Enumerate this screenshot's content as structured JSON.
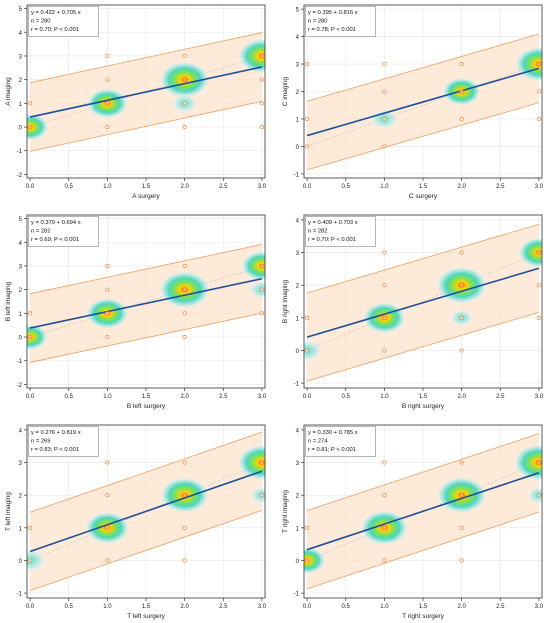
{
  "figure": {
    "panels": [
      {
        "id": "A",
        "chart_data": {
          "type": "scatter",
          "xlabel": "A surgery",
          "ylabel": "A imaging",
          "xlim": [
            0,
            3
          ],
          "ylim": [
            -2,
            5
          ],
          "xticks": [
            "0.0",
            "0.5",
            "1.0",
            "1.5",
            "2.0",
            "2.5",
            "3.0"
          ],
          "yticks": [
            "-2",
            "-1",
            "0",
            "1",
            "2",
            "3",
            "4",
            "5"
          ],
          "annotation": [
            "y = 0.422 + 0.705 x",
            "n = 280",
            "r = 0.70; P < 0.001"
          ],
          "regression": {
            "intercept": 0.422,
            "slope": 0.705
          },
          "band_halfwidth": 1.45,
          "points": [
            {
              "x": 0,
              "y": 0
            },
            {
              "x": 0,
              "y": 1
            },
            {
              "x": 1,
              "y": 0
            },
            {
              "x": 1,
              "y": 1
            },
            {
              "x": 1,
              "y": 2
            },
            {
              "x": 1,
              "y": 3
            },
            {
              "x": 2,
              "y": 0
            },
            {
              "x": 2,
              "y": 1
            },
            {
              "x": 2,
              "y": 2
            },
            {
              "x": 2,
              "y": 3
            },
            {
              "x": 3,
              "y": 0
            },
            {
              "x": 3,
              "y": 1
            },
            {
              "x": 3,
              "y": 2
            },
            {
              "x": 3,
              "y": 3
            }
          ],
          "density": [
            {
              "x": 0,
              "y": 0,
              "w": 0.45
            },
            {
              "x": 1,
              "y": 1,
              "w": 0.6
            },
            {
              "x": 2,
              "y": 2,
              "w": 0.95
            },
            {
              "x": 3,
              "y": 3,
              "w": 0.85
            },
            {
              "x": 2,
              "y": 1,
              "w": 0.2
            }
          ]
        }
      },
      {
        "id": "C",
        "chart_data": {
          "type": "scatter",
          "xlabel": "C surgery",
          "ylabel": "C imaging",
          "xlim": [
            0,
            3
          ],
          "ylim": [
            -1,
            5
          ],
          "xticks": [
            "0.0",
            "0.5",
            "1.0",
            "1.5",
            "2.0",
            "2.5",
            "3.0"
          ],
          "yticks": [
            "-1",
            "0",
            "1",
            "2",
            "3",
            "4",
            "5"
          ],
          "annotation": [
            "y = 0.395 + 0.816 x",
            "n = 280",
            "r = 0.78; P < 0.001"
          ],
          "regression": {
            "intercept": 0.395,
            "slope": 0.816
          },
          "band_halfwidth": 1.25,
          "points": [
            {
              "x": 0,
              "y": 0
            },
            {
              "x": 0,
              "y": 1
            },
            {
              "x": 0,
              "y": 3
            },
            {
              "x": 1,
              "y": 0
            },
            {
              "x": 1,
              "y": 1
            },
            {
              "x": 1,
              "y": 2
            },
            {
              "x": 1,
              "y": 3
            },
            {
              "x": 2,
              "y": 1
            },
            {
              "x": 2,
              "y": 2
            },
            {
              "x": 2,
              "y": 3
            },
            {
              "x": 3,
              "y": 1
            },
            {
              "x": 3,
              "y": 2
            },
            {
              "x": 3,
              "y": 3
            }
          ],
          "density": [
            {
              "x": 1,
              "y": 1,
              "w": 0.25
            },
            {
              "x": 2,
              "y": 2,
              "w": 0.5
            },
            {
              "x": 3,
              "y": 3,
              "w": 0.85
            }
          ]
        }
      },
      {
        "id": "B-left",
        "chart_data": {
          "type": "scatter",
          "xlabel": "B left surgery",
          "ylabel": "B left imaging",
          "xlim": [
            0,
            3
          ],
          "ylim": [
            -2,
            5
          ],
          "xticks": [
            "0.0",
            "0.5",
            "1.0",
            "1.5",
            "2.0",
            "2.5",
            "3.0"
          ],
          "yticks": [
            "-2",
            "-1",
            "0",
            "1",
            "2",
            "3",
            "4",
            "5"
          ],
          "annotation": [
            "y = 0.379 + 0.694 x",
            "n = 282",
            "r = 0.69; P < 0.001"
          ],
          "regression": {
            "intercept": 0.379,
            "slope": 0.694
          },
          "band_halfwidth": 1.45,
          "points": [
            {
              "x": 0,
              "y": 0
            },
            {
              "x": 0,
              "y": 1
            },
            {
              "x": 1,
              "y": 0
            },
            {
              "x": 1,
              "y": 1
            },
            {
              "x": 1,
              "y": 2
            },
            {
              "x": 1,
              "y": 3
            },
            {
              "x": 2,
              "y": 0
            },
            {
              "x": 2,
              "y": 1
            },
            {
              "x": 2,
              "y": 2
            },
            {
              "x": 2,
              "y": 3
            },
            {
              "x": 3,
              "y": 1
            },
            {
              "x": 3,
              "y": 2
            },
            {
              "x": 3,
              "y": 3
            }
          ],
          "density": [
            {
              "x": 0,
              "y": 0,
              "w": 0.4
            },
            {
              "x": 1,
              "y": 1,
              "w": 0.65
            },
            {
              "x": 2,
              "y": 2,
              "w": 1.0
            },
            {
              "x": 3,
              "y": 3,
              "w": 0.6
            },
            {
              "x": 3,
              "y": 2,
              "w": 0.2
            }
          ]
        }
      },
      {
        "id": "B-right",
        "chart_data": {
          "type": "scatter",
          "xlabel": "B right surgery",
          "ylabel": "B right imaging",
          "xlim": [
            0,
            3
          ],
          "ylim": [
            -1,
            4
          ],
          "xticks": [
            "0.0",
            "0.5",
            "1.0",
            "1.5",
            "2.0",
            "2.5",
            "3.0"
          ],
          "yticks": [
            "-1",
            "0",
            "1",
            "2",
            "3",
            "4"
          ],
          "annotation": [
            "y = 0.409 + 0.703 x",
            "n = 282",
            "r = 0.70; P < 0.001"
          ],
          "regression": {
            "intercept": 0.409,
            "slope": 0.703
          },
          "band_halfwidth": 1.35,
          "points": [
            {
              "x": 0,
              "y": 0
            },
            {
              "x": 0,
              "y": 1
            },
            {
              "x": 1,
              "y": 0
            },
            {
              "x": 1,
              "y": 1
            },
            {
              "x": 1,
              "y": 2
            },
            {
              "x": 1,
              "y": 3
            },
            {
              "x": 2,
              "y": 0
            },
            {
              "x": 2,
              "y": 1
            },
            {
              "x": 2,
              "y": 2
            },
            {
              "x": 2,
              "y": 3
            },
            {
              "x": 3,
              "y": 1
            },
            {
              "x": 3,
              "y": 2
            },
            {
              "x": 3,
              "y": 3
            }
          ],
          "density": [
            {
              "x": 0,
              "y": 0,
              "w": 0.3
            },
            {
              "x": 1,
              "y": 1,
              "w": 0.65
            },
            {
              "x": 2,
              "y": 2,
              "w": 1.0
            },
            {
              "x": 3,
              "y": 3,
              "w": 0.6
            },
            {
              "x": 2,
              "y": 1,
              "w": 0.15
            }
          ]
        }
      },
      {
        "id": "T-left",
        "chart_data": {
          "type": "scatter",
          "xlabel": "T left surgery",
          "ylabel": "T left imaging",
          "xlim": [
            0,
            3
          ],
          "ylim": [
            -1,
            4
          ],
          "xticks": [
            "0.0",
            "0.5",
            "1.0",
            "1.5",
            "2.0",
            "2.5",
            "3.0"
          ],
          "yticks": [
            "-1",
            "0",
            "1",
            "2",
            "3",
            "4"
          ],
          "annotation": [
            "y = 0.276 + 0.819 x",
            "n = 269",
            "r = 0.83; P < 0.001"
          ],
          "regression": {
            "intercept": 0.276,
            "slope": 0.819
          },
          "band_halfwidth": 1.2,
          "points": [
            {
              "x": 0,
              "y": 0
            },
            {
              "x": 0,
              "y": 1
            },
            {
              "x": 1,
              "y": 0
            },
            {
              "x": 1,
              "y": 1
            },
            {
              "x": 1,
              "y": 2
            },
            {
              "x": 1,
              "y": 3
            },
            {
              "x": 2,
              "y": 0
            },
            {
              "x": 2,
              "y": 1
            },
            {
              "x": 2,
              "y": 2
            },
            {
              "x": 2,
              "y": 3
            },
            {
              "x": 3,
              "y": 2
            },
            {
              "x": 3,
              "y": 3
            }
          ],
          "density": [
            {
              "x": 0,
              "y": 0,
              "w": 0.35
            },
            {
              "x": 1,
              "y": 1,
              "w": 0.7
            },
            {
              "x": 2,
              "y": 2,
              "w": 0.9
            },
            {
              "x": 3,
              "y": 3,
              "w": 0.9
            },
            {
              "x": 3,
              "y": 2,
              "w": 0.15
            }
          ]
        }
      },
      {
        "id": "T-right",
        "chart_data": {
          "type": "scatter",
          "xlabel": "T right surgery",
          "ylabel": "T right imaging",
          "xlim": [
            0,
            3
          ],
          "ylim": [
            -1,
            4
          ],
          "xticks": [
            "0.0",
            "0.5",
            "1.0",
            "1.5",
            "2.0",
            "2.5",
            "3.0"
          ],
          "yticks": [
            "-1",
            "0",
            "1",
            "2",
            "3",
            "4"
          ],
          "annotation": [
            "y = 0.330 + 0.785 x",
            "n = 274",
            "r = 0.81; P < 0.001"
          ],
          "regression": {
            "intercept": 0.33,
            "slope": 0.785
          },
          "band_halfwidth": 1.2,
          "points": [
            {
              "x": 0,
              "y": 0
            },
            {
              "x": 0,
              "y": 1
            },
            {
              "x": 1,
              "y": 0
            },
            {
              "x": 1,
              "y": 1
            },
            {
              "x": 1,
              "y": 2
            },
            {
              "x": 1,
              "y": 3
            },
            {
              "x": 2,
              "y": 0
            },
            {
              "x": 2,
              "y": 1
            },
            {
              "x": 2,
              "y": 2
            },
            {
              "x": 2,
              "y": 3
            },
            {
              "x": 3,
              "y": 2
            },
            {
              "x": 3,
              "y": 3
            }
          ],
          "density": [
            {
              "x": 0,
              "y": 0,
              "w": 0.45
            },
            {
              "x": 1,
              "y": 1,
              "w": 0.85
            },
            {
              "x": 2,
              "y": 2,
              "w": 0.95
            },
            {
              "x": 3,
              "y": 3,
              "w": 0.95
            },
            {
              "x": 3,
              "y": 2,
              "w": 0.15
            }
          ]
        }
      }
    ],
    "colors": {
      "band_fill": "#fde3cc",
      "band_line": "#f0a060",
      "point_stroke": "#f08a3c",
      "regression": "#1f4e9a",
      "identity": "#bbbbbb",
      "axis": "#333333",
      "grid": "#e6e6e6",
      "annotation_box": "#888888"
    }
  }
}
